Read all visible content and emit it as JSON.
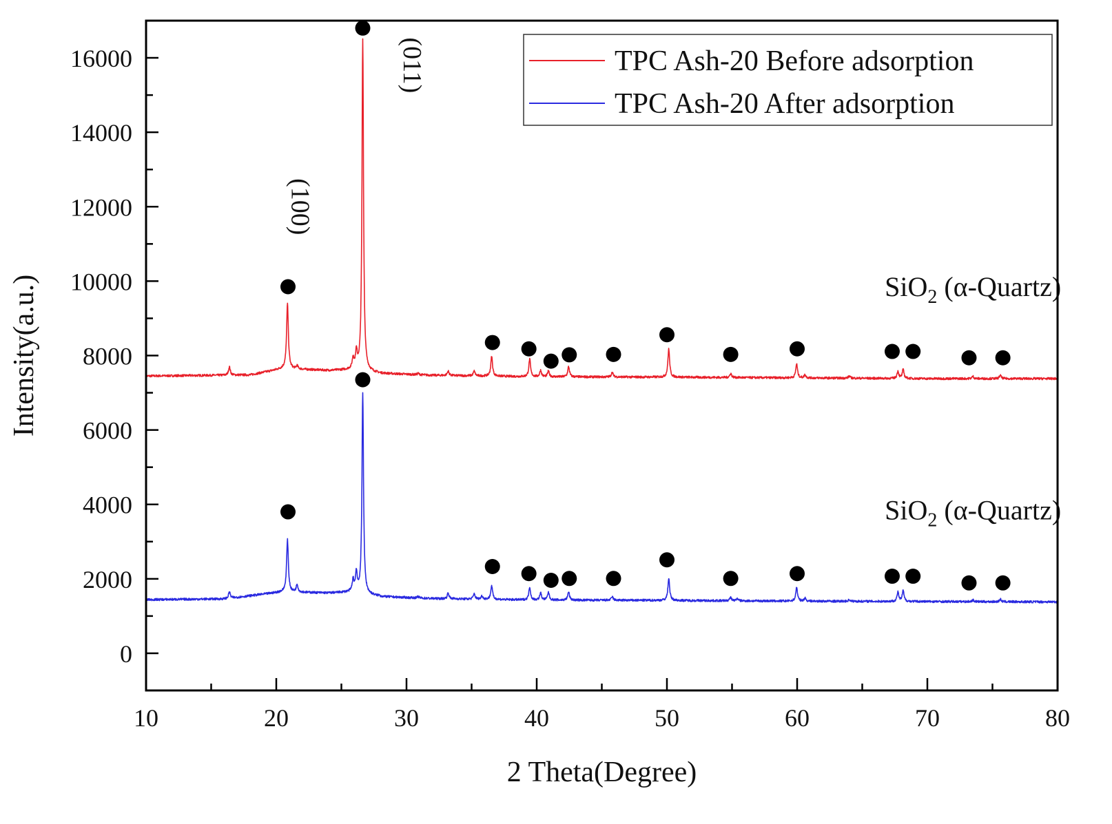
{
  "chart_data": {
    "type": "line",
    "title": "",
    "xlabel": "2 Theta(Degree)",
    "ylabel": "Intensity(a.u.)",
    "xlim": [
      10,
      80
    ],
    "ylim": [
      -1000,
      17000
    ],
    "xticks": [
      10,
      20,
      30,
      40,
      50,
      60,
      70,
      80
    ],
    "xticks_minor": [
      15,
      25,
      35,
      45,
      55,
      65,
      75
    ],
    "yticks": [
      0,
      2000,
      4000,
      6000,
      8000,
      10000,
      12000,
      14000,
      16000
    ],
    "yticks_minor": [
      -1000,
      1000,
      3000,
      5000,
      7000,
      9000,
      11000,
      13000,
      15000,
      17000
    ],
    "grid": false,
    "legend_position": "top-right",
    "series": [
      {
        "name": "TPC Ash-20 Before adsorption",
        "color": "#e8202a",
        "baseline": [
          [
            10,
            7450
          ],
          [
            18,
            7480
          ],
          [
            20.5,
            7650
          ],
          [
            24,
            7600
          ],
          [
            26,
            7620
          ],
          [
            28,
            7520
          ],
          [
            32,
            7470
          ],
          [
            40,
            7430
          ],
          [
            50,
            7420
          ],
          [
            60,
            7400
          ],
          [
            70,
            7380
          ],
          [
            80,
            7380
          ]
        ],
        "peaks": [
          {
            "x": 16.4,
            "y": 7700
          },
          {
            "x": 20.86,
            "y": 9400
          },
          {
            "x": 21.6,
            "y": 7720
          },
          {
            "x": 25.9,
            "y": 7900
          },
          {
            "x": 26.15,
            "y": 8050
          },
          {
            "x": 26.64,
            "y": 16500
          },
          {
            "x": 30.9,
            "y": 7520
          },
          {
            "x": 33.2,
            "y": 7580
          },
          {
            "x": 35.2,
            "y": 7580
          },
          {
            "x": 36.54,
            "y": 7980
          },
          {
            "x": 39.46,
            "y": 7900
          },
          {
            "x": 40.3,
            "y": 7600
          },
          {
            "x": 40.9,
            "y": 7580
          },
          {
            "x": 42.45,
            "y": 7700
          },
          {
            "x": 45.8,
            "y": 7550
          },
          {
            "x": 50.14,
            "y": 8180
          },
          {
            "x": 54.9,
            "y": 7520
          },
          {
            "x": 59.96,
            "y": 7780
          },
          {
            "x": 60.6,
            "y": 7480
          },
          {
            "x": 64.0,
            "y": 7450
          },
          {
            "x": 67.74,
            "y": 7580
          },
          {
            "x": 68.14,
            "y": 7620
          },
          {
            "x": 73.5,
            "y": 7440
          },
          {
            "x": 75.6,
            "y": 7470
          }
        ]
      },
      {
        "name": "TPC Ash-20 After adsorption",
        "color": "#2a2ae0",
        "baseline": [
          [
            10,
            1440
          ],
          [
            16,
            1460
          ],
          [
            20.5,
            1650
          ],
          [
            24,
            1620
          ],
          [
            26,
            1650
          ],
          [
            28,
            1520
          ],
          [
            32,
            1470
          ],
          [
            40,
            1430
          ],
          [
            50,
            1420
          ],
          [
            60,
            1400
          ],
          [
            70,
            1390
          ],
          [
            80,
            1380
          ]
        ],
        "peaks": [
          {
            "x": 16.4,
            "y": 1650
          },
          {
            "x": 20.86,
            "y": 3050
          },
          {
            "x": 21.6,
            "y": 1850
          },
          {
            "x": 25.9,
            "y": 1950
          },
          {
            "x": 26.15,
            "y": 2150
          },
          {
            "x": 26.64,
            "y": 7000
          },
          {
            "x": 27.9,
            "y": 1550
          },
          {
            "x": 30.9,
            "y": 1520
          },
          {
            "x": 33.2,
            "y": 1620
          },
          {
            "x": 35.2,
            "y": 1600
          },
          {
            "x": 35.8,
            "y": 1540
          },
          {
            "x": 36.54,
            "y": 1820
          },
          {
            "x": 39.46,
            "y": 1780
          },
          {
            "x": 40.3,
            "y": 1620
          },
          {
            "x": 40.9,
            "y": 1640
          },
          {
            "x": 42.45,
            "y": 1650
          },
          {
            "x": 45.8,
            "y": 1520
          },
          {
            "x": 50.14,
            "y": 2020
          },
          {
            "x": 54.9,
            "y": 1500
          },
          {
            "x": 55.4,
            "y": 1470
          },
          {
            "x": 59.96,
            "y": 1770
          },
          {
            "x": 60.6,
            "y": 1480
          },
          {
            "x": 64.0,
            "y": 1440
          },
          {
            "x": 67.74,
            "y": 1640
          },
          {
            "x": 68.14,
            "y": 1680
          },
          {
            "x": 73.5,
            "y": 1430
          },
          {
            "x": 75.6,
            "y": 1450
          }
        ]
      }
    ],
    "markers": {
      "symbol": "filled-circle",
      "label": "SiO2 (α-Quartz)",
      "before": [
        {
          "x": 20.9,
          "y": 9850
        },
        {
          "x": 26.64,
          "y": 16800
        },
        {
          "x": 36.6,
          "y": 8350
        },
        {
          "x": 39.4,
          "y": 8180
        },
        {
          "x": 41.1,
          "y": 7850
        },
        {
          "x": 42.5,
          "y": 8020
        },
        {
          "x": 45.9,
          "y": 8030
        },
        {
          "x": 50.0,
          "y": 8560
        },
        {
          "x": 54.9,
          "y": 8030
        },
        {
          "x": 60.0,
          "y": 8180
        },
        {
          "x": 67.3,
          "y": 8110
        },
        {
          "x": 68.9,
          "y": 8110
        },
        {
          "x": 73.2,
          "y": 7940
        },
        {
          "x": 75.8,
          "y": 7940
        }
      ],
      "after": [
        {
          "x": 20.9,
          "y": 3800
        },
        {
          "x": 26.64,
          "y": 7350
        },
        {
          "x": 36.6,
          "y": 2330
        },
        {
          "x": 39.4,
          "y": 2140
        },
        {
          "x": 41.1,
          "y": 1960
        },
        {
          "x": 42.5,
          "y": 2010
        },
        {
          "x": 45.9,
          "y": 2010
        },
        {
          "x": 50.0,
          "y": 2510
        },
        {
          "x": 54.9,
          "y": 2010
        },
        {
          "x": 60.0,
          "y": 2140
        },
        {
          "x": 67.3,
          "y": 2070
        },
        {
          "x": 68.9,
          "y": 2070
        },
        {
          "x": 73.2,
          "y": 1890
        },
        {
          "x": 75.8,
          "y": 1890
        }
      ]
    },
    "annotations": [
      {
        "text": "(100)",
        "x": 21.2,
        "y": 12000,
        "rotation": "vertical"
      },
      {
        "text": "(011)",
        "x": 29.8,
        "y": 15800,
        "rotation": "vertical"
      }
    ],
    "phase_labels": [
      {
        "main": "SiO",
        "sub": "2",
        "rest": " (α-Quartz)",
        "x": 73.5,
        "y": 9600
      },
      {
        "main": "SiO",
        "sub": "2",
        "rest": " (α-Quartz)",
        "x": 73.5,
        "y": 3600
      }
    ]
  }
}
